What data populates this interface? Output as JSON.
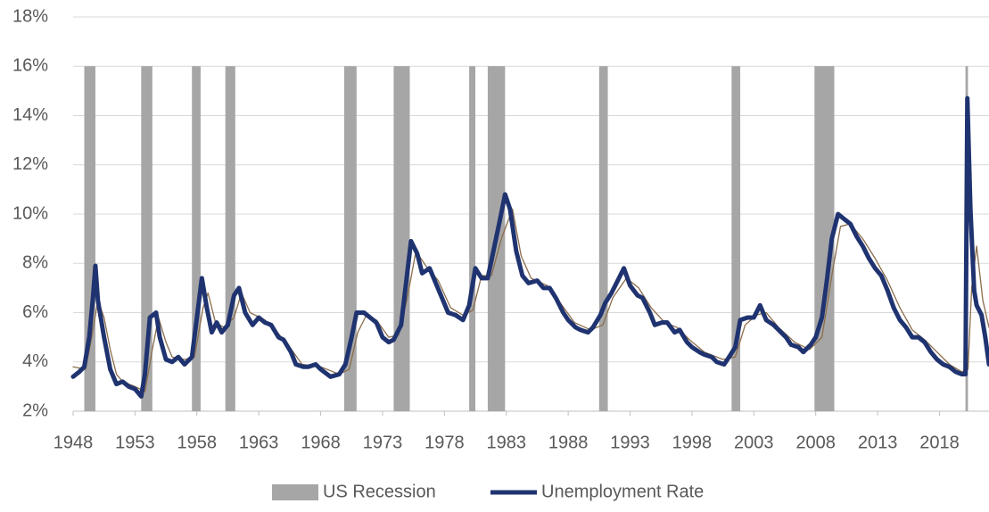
{
  "chart_data": {
    "type": "line",
    "xlim": [
      1948,
      2022
    ],
    "xticks": [
      1948,
      1953,
      1958,
      1963,
      1968,
      1973,
      1978,
      1983,
      1988,
      1993,
      1998,
      2003,
      2008,
      2013,
      2018
    ],
    "ylim": [
      2,
      18
    ],
    "yticks": [
      {
        "value": 2,
        "label": "2%"
      },
      {
        "value": 4,
        "label": "4%"
      },
      {
        "value": 6,
        "label": "6%"
      },
      {
        "value": 8,
        "label": "8%"
      },
      {
        "value": 10,
        "label": "10%"
      },
      {
        "value": 12,
        "label": "12%"
      },
      {
        "value": 14,
        "label": "14%"
      },
      {
        "value": 16,
        "label": "16%"
      },
      {
        "value": 18,
        "label": "18%"
      }
    ],
    "grid": true,
    "legend": "bottom",
    "recessions": {
      "name": "US Recession",
      "color": "#a6a6a6",
      "value": 16,
      "periods": [
        [
          1948.9,
          1949.8
        ],
        [
          1953.5,
          1954.4
        ],
        [
          1957.6,
          1958.3
        ],
        [
          1960.3,
          1961.1
        ],
        [
          1969.9,
          1970.9
        ],
        [
          1973.9,
          1975.2
        ],
        [
          1980.0,
          1980.5
        ],
        [
          1981.5,
          1982.9
        ],
        [
          1990.5,
          1991.2
        ],
        [
          2001.2,
          2001.9
        ],
        [
          2007.9,
          2009.5
        ],
        [
          2020.1,
          2020.3
        ]
      ]
    },
    "series": [
      {
        "name": "Unemployment Rate",
        "color": "#1f3370",
        "x": [
          1948.0,
          1948.5,
          1948.9,
          1949.3,
          1949.6,
          1949.8,
          1950.0,
          1950.5,
          1951.0,
          1951.5,
          1952.0,
          1952.5,
          1953.0,
          1953.5,
          1953.8,
          1954.2,
          1954.7,
          1955.0,
          1955.5,
          1956.0,
          1956.5,
          1957.0,
          1957.6,
          1958.0,
          1958.4,
          1958.8,
          1959.2,
          1959.6,
          1960.0,
          1960.5,
          1961.0,
          1961.4,
          1961.9,
          1962.5,
          1963.0,
          1963.5,
          1964.0,
          1964.6,
          1965.0,
          1965.6,
          1966.0,
          1966.6,
          1967.0,
          1967.6,
          1968.0,
          1968.8,
          1969.5,
          1970.0,
          1970.5,
          1970.9,
          1971.5,
          1972.0,
          1972.5,
          1973.0,
          1973.5,
          1973.9,
          1974.5,
          1974.9,
          1975.3,
          1975.8,
          1976.2,
          1976.8,
          1977.3,
          1977.8,
          1978.3,
          1978.9,
          1979.5,
          1980.0,
          1980.5,
          1981.0,
          1981.5,
          1982.0,
          1982.5,
          1982.9,
          1983.3,
          1983.8,
          1984.3,
          1984.8,
          1985.5,
          1986.0,
          1986.5,
          1987.0,
          1987.6,
          1988.0,
          1988.6,
          1989.0,
          1989.6,
          1990.0,
          1990.6,
          1991.0,
          1991.5,
          1992.0,
          1992.5,
          1993.0,
          1993.6,
          1994.0,
          1994.6,
          1995.0,
          1995.6,
          1996.0,
          1996.6,
          1997.0,
          1997.6,
          1998.0,
          1998.6,
          1999.0,
          1999.6,
          2000.0,
          2000.6,
          2001.0,
          2001.5,
          2001.9,
          2002.5,
          2003.0,
          2003.5,
          2004.0,
          2004.6,
          2005.0,
          2005.6,
          2006.0,
          2006.6,
          2007.0,
          2007.6,
          2008.0,
          2008.5,
          2008.9,
          2009.3,
          2009.8,
          2010.3,
          2010.8,
          2011.3,
          2011.8,
          2012.3,
          2012.8,
          2013.3,
          2013.8,
          2014.3,
          2014.8,
          2015.3,
          2015.8,
          2016.3,
          2016.8,
          2017.3,
          2017.8,
          2018.3,
          2018.8,
          2019.3,
          2019.8,
          2020.1,
          2020.25,
          2020.5,
          2020.8,
          2021.0,
          2021.4,
          2021.7,
          2022.0
        ],
        "values": [
          3.4,
          3.6,
          3.8,
          5.0,
          6.6,
          7.9,
          6.5,
          5.0,
          3.7,
          3.1,
          3.2,
          3.0,
          2.9,
          2.6,
          3.5,
          5.8,
          6.0,
          5.0,
          4.1,
          4.0,
          4.2,
          3.9,
          4.2,
          5.8,
          7.4,
          6.2,
          5.2,
          5.6,
          5.2,
          5.5,
          6.7,
          7.0,
          6.0,
          5.5,
          5.8,
          5.6,
          5.5,
          5.0,
          4.9,
          4.4,
          3.9,
          3.8,
          3.8,
          3.9,
          3.7,
          3.4,
          3.5,
          3.9,
          5.0,
          6.0,
          6.0,
          5.8,
          5.6,
          5.0,
          4.8,
          4.9,
          5.5,
          7.2,
          8.9,
          8.4,
          7.6,
          7.8,
          7.2,
          6.6,
          6.0,
          5.9,
          5.7,
          6.3,
          7.8,
          7.4,
          7.4,
          8.6,
          9.8,
          10.8,
          10.2,
          8.5,
          7.5,
          7.2,
          7.3,
          7.0,
          7.0,
          6.6,
          6.0,
          5.7,
          5.4,
          5.3,
          5.2,
          5.4,
          5.9,
          6.4,
          6.8,
          7.3,
          7.8,
          7.1,
          6.7,
          6.6,
          6.0,
          5.5,
          5.6,
          5.6,
          5.2,
          5.3,
          4.8,
          4.6,
          4.4,
          4.3,
          4.2,
          4.0,
          3.9,
          4.2,
          4.6,
          5.7,
          5.8,
          5.8,
          6.3,
          5.7,
          5.5,
          5.3,
          5.0,
          4.7,
          4.6,
          4.4,
          4.7,
          5.0,
          5.8,
          7.3,
          9.0,
          10.0,
          9.8,
          9.6,
          9.1,
          8.7,
          8.2,
          7.8,
          7.5,
          6.9,
          6.2,
          5.7,
          5.4,
          5.0,
          5.0,
          4.8,
          4.4,
          4.1,
          3.9,
          3.8,
          3.6,
          3.5,
          3.5,
          14.7,
          10.2,
          6.9,
          6.3,
          5.9,
          5.0,
          3.9
        ]
      },
      {
        "color": "#8b6d4c",
        "x": [
          1948.0,
          1949.0,
          1949.5,
          1950.0,
          1950.5,
          1951.0,
          1951.5,
          1952.0,
          1953.0,
          1953.8,
          1954.4,
          1954.9,
          1955.5,
          1956.0,
          1957.0,
          1957.8,
          1958.5,
          1958.9,
          1959.5,
          1960.2,
          1961.0,
          1961.6,
          1962.3,
          1963.5,
          1964.5,
          1965.5,
          1966.5,
          1968.0,
          1969.5,
          1970.3,
          1971.0,
          1971.7,
          1972.5,
          1973.5,
          1974.3,
          1975.0,
          1975.7,
          1976.5,
          1977.5,
          1978.5,
          1979.5,
          1980.3,
          1981.0,
          1981.8,
          1982.6,
          1983.5,
          1984.2,
          1985.0,
          1986.3,
          1987.5,
          1988.5,
          1989.8,
          1990.8,
          1991.6,
          1992.7,
          1993.7,
          1994.7,
          1995.8,
          1996.8,
          1997.8,
          1999.0,
          2000.5,
          2001.5,
          2002.3,
          2003.2,
          2004.0,
          2005.0,
          2006.3,
          2007.5,
          2008.5,
          2009.3,
          2010.0,
          2010.8,
          2011.8,
          2012.8,
          2013.8,
          2014.8,
          2015.8,
          2016.8,
          2017.8,
          2018.8,
          2019.8,
          2020.3,
          2020.6,
          2021.0,
          2021.5,
          2022.0
        ],
        "values": [
          3.8,
          3.7,
          5.0,
          6.5,
          5.8,
          4.5,
          3.5,
          3.2,
          3.0,
          2.8,
          4.5,
          5.8,
          4.8,
          4.2,
          4.1,
          4.2,
          6.2,
          6.8,
          5.6,
          5.4,
          5.8,
          6.8,
          6.0,
          5.7,
          5.2,
          4.6,
          3.9,
          3.8,
          3.5,
          3.7,
          5.2,
          5.9,
          5.7,
          5.0,
          5.1,
          6.6,
          8.5,
          7.9,
          7.3,
          6.2,
          5.9,
          6.1,
          7.5,
          7.5,
          9.0,
          10.2,
          8.3,
          7.4,
          7.1,
          6.3,
          5.6,
          5.3,
          5.5,
          6.6,
          7.4,
          7.0,
          6.2,
          5.6,
          5.4,
          4.9,
          4.4,
          4.1,
          4.2,
          5.5,
          5.9,
          6.0,
          5.4,
          4.8,
          4.5,
          5.0,
          7.5,
          9.5,
          9.6,
          9.0,
          8.2,
          7.3,
          6.2,
          5.3,
          4.9,
          4.4,
          3.9,
          3.6,
          3.7,
          7.0,
          8.7,
          6.5,
          5.4
        ]
      }
    ]
  }
}
